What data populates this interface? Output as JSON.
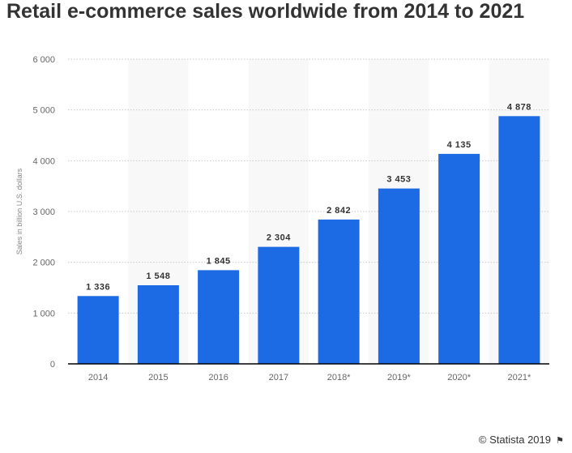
{
  "chart_data": {
    "type": "bar",
    "title": "Retail e-commerce sales worldwide from 2014 to 2021",
    "categories": [
      "2014",
      "2015",
      "2016",
      "2017",
      "2018*",
      "2019*",
      "2020*",
      "2021*"
    ],
    "values": [
      1336,
      1548,
      1845,
      2304,
      2842,
      3453,
      4135,
      4878
    ],
    "value_labels": [
      "1 336",
      "1 548",
      "1 845",
      "2 304",
      "2 842",
      "3 453",
      "4 135",
      "4 878"
    ],
    "xlabel": "",
    "ylabel": "Sales in billion U.S. dollars",
    "ylim": [
      0,
      6000
    ],
    "yticks": [
      0,
      1000,
      2000,
      3000,
      4000,
      5000,
      6000
    ],
    "ytick_labels": [
      "0",
      "1 000",
      "2 000",
      "3 000",
      "4 000",
      "5 000",
      "6 000"
    ],
    "grid": true,
    "bar_color": "#1d6ae5"
  },
  "footer": {
    "credit": "© Statista 2019",
    "flag_icon": "flag-icon"
  }
}
